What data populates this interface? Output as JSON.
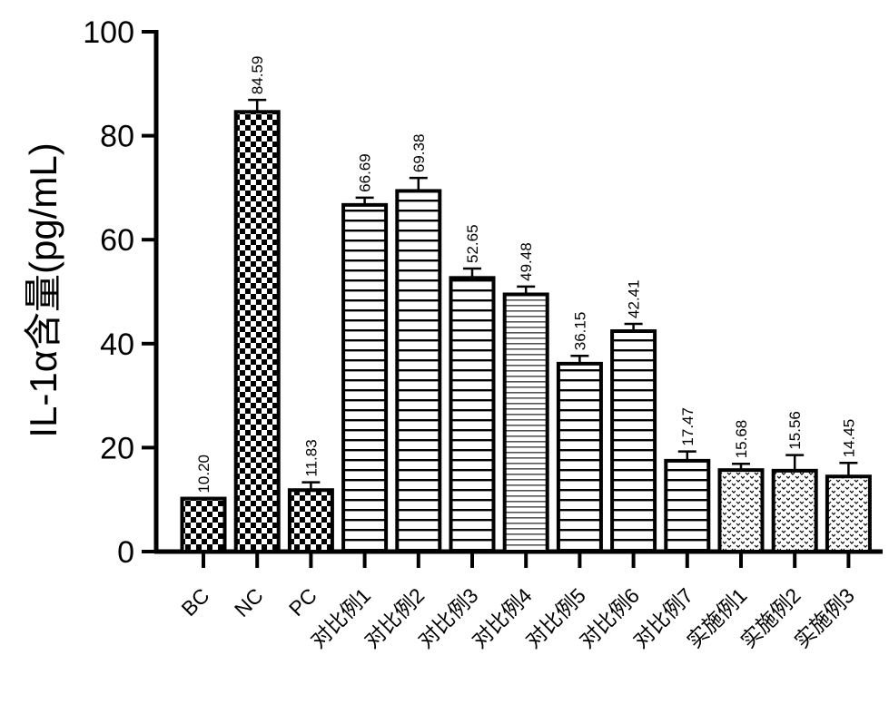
{
  "chart_data": {
    "type": "bar",
    "title": "",
    "xlabel": "",
    "ylabel": "IL-1α含量(pg/mL)",
    "ylim": [
      0,
      100
    ],
    "yticks": [
      0,
      20,
      40,
      60,
      80,
      100
    ],
    "grid": false,
    "categories": [
      "BC",
      "NC",
      "PC",
      "对比例1",
      "对比例2",
      "对比例3",
      "对比例4",
      "对比例5",
      "对比例6",
      "对比例7",
      "实施例1",
      "实施例2",
      "实施例3"
    ],
    "values": [
      10.2,
      84.59,
      11.83,
      66.69,
      69.38,
      52.65,
      49.48,
      36.15,
      42.41,
      17.47,
      15.68,
      15.56,
      14.45
    ],
    "value_labels": [
      "10.20",
      "84.59",
      "11.83",
      "66.69",
      "69.38",
      "52.65",
      "49.48",
      "36.15",
      "42.41",
      "17.47",
      "15.68",
      "15.56",
      "14.45"
    ],
    "errors": [
      0.0,
      2.3,
      1.5,
      1.4,
      2.5,
      1.8,
      1.5,
      1.5,
      1.4,
      1.8,
      1.2,
      3.0,
      2.6
    ],
    "fill_patterns": [
      "checker",
      "checker",
      "checker",
      "hlines",
      "hlines",
      "hlines",
      "hlines-fine",
      "hlines",
      "hlines",
      "hlines",
      "dots",
      "dots",
      "dots"
    ]
  }
}
